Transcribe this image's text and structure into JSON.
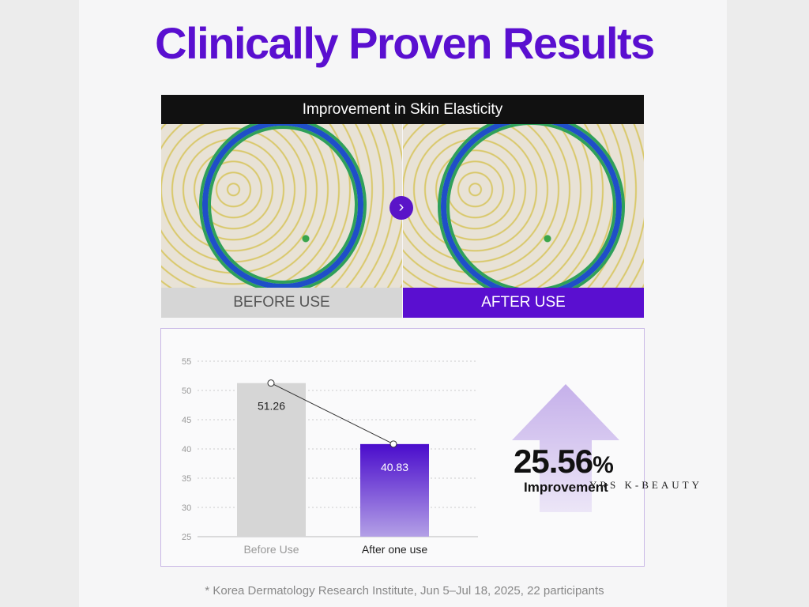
{
  "title": "Clinically Proven Results",
  "comparison": {
    "heading": "Improvement in Skin Elasticity",
    "before_label": "BEFORE USE",
    "after_label": "AFTER USE",
    "next_icon": "chevron-right-icon",
    "accent": "#5a0fd0"
  },
  "chart_data": {
    "type": "bar",
    "categories": [
      "Before Use",
      "After one use"
    ],
    "values": [
      51.26,
      40.83
    ],
    "value_labels": [
      "51.26",
      "40.83"
    ],
    "ylim": [
      25,
      55
    ],
    "yticks": [
      "25",
      "30",
      "35",
      "40",
      "45",
      "50",
      "55"
    ],
    "grid": true,
    "colors": [
      "#d6d6d6",
      "#5a0fd0"
    ]
  },
  "improvement": {
    "value": "25.56",
    "unit": "%",
    "label": "Improvement"
  },
  "watermark": "YRS K-BEAUTY",
  "footnote": "* Korea Dermatology Research Institute, Jun 5–Jul 18, 2025, 22 participants"
}
